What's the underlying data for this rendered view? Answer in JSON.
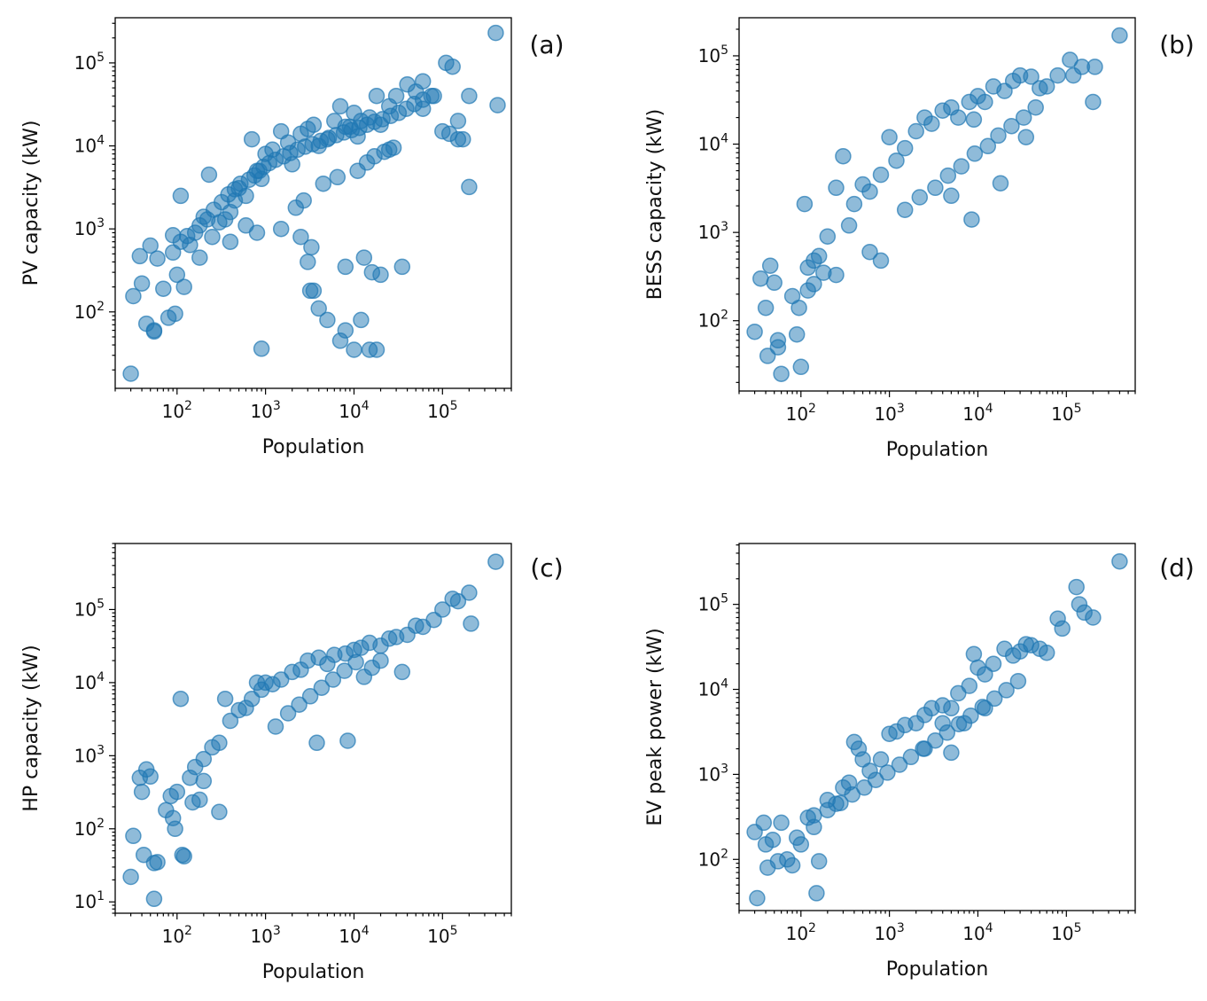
{
  "colors": {
    "point": "#1f77b4",
    "axis": "#000000",
    "background": "#ffffff"
  },
  "chart_data": [
    {
      "type": "scatter",
      "panel_label": "(a)",
      "xlabel": "Population",
      "ylabel": "PV capacity (kW)",
      "xscale": "log",
      "yscale": "log",
      "xlim": [
        20,
        600000
      ],
      "ylim": [
        12,
        350000
      ],
      "xticks": [
        {
          "v": 100,
          "label": "10^2"
        },
        {
          "v": 1000,
          "label": "10^3"
        },
        {
          "v": 10000,
          "label": "10^4"
        },
        {
          "v": 100000,
          "label": "10^5"
        }
      ],
      "yticks": [
        {
          "v": 100,
          "label": "10^2"
        },
        {
          "v": 1000,
          "label": "10^3"
        },
        {
          "v": 10000,
          "label": "10^4"
        },
        {
          "v": 100000,
          "label": "10^5"
        }
      ],
      "legend": "none",
      "grid": false,
      "x": [
        30,
        32,
        38,
        40,
        45,
        50,
        55,
        55,
        60,
        70,
        80,
        90,
        95,
        100,
        110,
        120,
        140,
        160,
        180,
        200,
        230,
        250,
        300,
        350,
        400,
        450,
        500,
        600,
        700,
        800,
        900,
        1000,
        1200,
        1500,
        1800,
        2000,
        2500,
        3000,
        3500,
        4000,
        5000,
        6000,
        7000,
        8000,
        10000,
        12000,
        15000,
        18000,
        20000,
        25000,
        30000,
        40000,
        50000,
        60000,
        80000,
        110000,
        130000,
        150000,
        200000,
        400000,
        420000,
        200000,
        150000,
        100000,
        3500,
        3200,
        4000,
        5000,
        7000,
        8000,
        10000,
        12000,
        15000,
        18000,
        900,
        3000,
        3300,
        1500,
        2500,
        8000,
        13000,
        16000,
        20000,
        35000,
        170000,
        120000,
        60000,
        25000,
        9000,
        11000,
        400,
        600,
        800,
        2200,
        2700,
        4500,
        6500,
        11000,
        14000,
        17000,
        22000,
        28000,
        90,
        110,
        130,
        180,
        220,
        260,
        320,
        380,
        450,
        520,
        650,
        750,
        850,
        950,
        1100,
        1300,
        1600,
        1900,
        2300,
        2800,
        3400,
        4200,
        5200,
        6300,
        7700,
        9400,
        11500,
        14000,
        17000,
        21000,
        26000,
        32000,
        39000,
        48000,
        60000,
        75000
      ],
      "y": [
        18,
        155,
        470,
        220,
        72,
        630,
        60,
        58,
        440,
        190,
        85,
        840,
        95,
        280,
        2500,
        200,
        640,
        900,
        450,
        1400,
        4500,
        800,
        1200,
        1300,
        1600,
        2200,
        3100,
        2500,
        12000,
        5000,
        4000,
        8000,
        9000,
        15000,
        11000,
        6000,
        14000,
        16000,
        18000,
        10000,
        12000,
        20000,
        30000,
        17000,
        25000,
        20000,
        22000,
        40000,
        18000,
        30000,
        40000,
        55000,
        45000,
        60000,
        40000,
        100000,
        90000,
        20000,
        40000,
        230000,
        31000,
        3200,
        12000,
        15000,
        180,
        180,
        110,
        80,
        45,
        60,
        35,
        80,
        35,
        35,
        36,
        400,
        600,
        1000,
        800,
        350,
        450,
        300,
        280,
        350,
        12000,
        14000,
        28000,
        9000,
        17000,
        13000,
        700,
        1100,
        900,
        1800,
        2200,
        3500,
        4200,
        5000,
        6300,
        7500,
        8500,
        9500,
        520,
        700,
        820,
        1100,
        1300,
        1700,
        2100,
        2600,
        3000,
        3500,
        3900,
        4400,
        5000,
        5600,
        6200,
        6800,
        7500,
        8200,
        9000,
        9800,
        10500,
        11500,
        12500,
        13500,
        14500,
        15500,
        16500,
        18000,
        19500,
        21000,
        23000,
        25000,
        28000,
        32000,
        36000,
        40000
      ]
    },
    {
      "type": "scatter",
      "panel_label": "(b)",
      "xlabel": "Population",
      "ylabel": "BESS capacity (kW)",
      "xscale": "log",
      "yscale": "log",
      "xlim": [
        20,
        600000
      ],
      "ylim": [
        16,
        270000
      ],
      "xticks": [
        {
          "v": 100,
          "label": "10^2"
        },
        {
          "v": 1000,
          "label": "10^3"
        },
        {
          "v": 10000,
          "label": "10^4"
        },
        {
          "v": 100000,
          "label": "10^5"
        }
      ],
      "yticks": [
        {
          "v": 100,
          "label": "10^2"
        },
        {
          "v": 1000,
          "label": "10^3"
        },
        {
          "v": 10000,
          "label": "10^4"
        },
        {
          "v": 100000,
          "label": "10^5"
        }
      ],
      "legend": "none",
      "grid": false,
      "x": [
        30,
        35,
        40,
        42,
        45,
        50,
        55,
        55,
        60,
        80,
        90,
        95,
        100,
        110,
        120,
        140,
        160,
        200,
        250,
        300,
        350,
        400,
        500,
        600,
        800,
        1000,
        1200,
        1500,
        2000,
        2500,
        3000,
        4000,
        5000,
        6000,
        8000,
        9000,
        10000,
        12000,
        15000,
        20000,
        25000,
        30000,
        40000,
        50000,
        60000,
        80000,
        110000,
        120000,
        150000,
        200000,
        210000,
        400000,
        18000,
        5000,
        800,
        600,
        8500,
        35000,
        250,
        180,
        140,
        120,
        1500,
        2200,
        3300,
        4600,
        6500,
        9200,
        13000,
        17000,
        24000,
        33000,
        45000
      ],
      "y": [
        75,
        300,
        140,
        40,
        420,
        270,
        60,
        50,
        25,
        190,
        70,
        140,
        30,
        2100,
        400,
        480,
        540,
        900,
        3200,
        7300,
        1200,
        2100,
        3500,
        2900,
        4500,
        12000,
        6500,
        9000,
        14000,
        20000,
        17000,
        24000,
        26000,
        20000,
        30000,
        19000,
        35000,
        30000,
        45000,
        40000,
        52000,
        60000,
        58000,
        43000,
        45000,
        60000,
        90000,
        60000,
        75000,
        30000,
        75000,
        170000,
        3600,
        2600,
        480,
        600,
        1400,
        12000,
        330,
        350,
        260,
        220,
        1800,
        2500,
        3200,
        4400,
        5600,
        7800,
        9500,
        12500,
        16000,
        20000,
        26000
      ]
    },
    {
      "type": "scatter",
      "panel_label": "(c)",
      "xlabel": "Population",
      "ylabel": "HP capacity (kW)",
      "xscale": "log",
      "yscale": "log",
      "xlim": [
        20,
        600000
      ],
      "ylim": [
        7,
        800000
      ],
      "xticks": [
        {
          "v": 100,
          "label": "10^2"
        },
        {
          "v": 1000,
          "label": "10^3"
        },
        {
          "v": 10000,
          "label": "10^4"
        },
        {
          "v": 100000,
          "label": "10^5"
        }
      ],
      "yticks": [
        {
          "v": 10,
          "label": "10^1"
        },
        {
          "v": 100,
          "label": "10^2"
        },
        {
          "v": 1000,
          "label": "10^3"
        },
        {
          "v": 10000,
          "label": "10^4"
        },
        {
          "v": 100000,
          "label": "10^5"
        }
      ],
      "legend": "none",
      "grid": false,
      "x": [
        30,
        32,
        38,
        40,
        42,
        45,
        50,
        55,
        55,
        60,
        75,
        85,
        90,
        95,
        100,
        110,
        115,
        120,
        140,
        160,
        200,
        250,
        300,
        350,
        400,
        500,
        600,
        700,
        800,
        900,
        1000,
        1200,
        1500,
        2000,
        2500,
        3000,
        4000,
        5000,
        6000,
        8000,
        10000,
        12000,
        15000,
        20000,
        25000,
        30000,
        40000,
        50000,
        60000,
        80000,
        100000,
        130000,
        150000,
        200000,
        210000,
        400000,
        8500,
        3800,
        200,
        300,
        150,
        180,
        13000,
        16000,
        20000,
        35000,
        1300,
        1800,
        2400,
        3200,
        4300,
        5800,
        7800,
        10500
      ],
      "y": [
        22,
        80,
        500,
        320,
        44,
        650,
        520,
        34,
        11,
        35,
        180,
        280,
        140,
        100,
        320,
        6000,
        44,
        42,
        500,
        700,
        900,
        1300,
        1500,
        6000,
        3000,
        4200,
        4500,
        6000,
        10000,
        8000,
        10000,
        9500,
        11000,
        14000,
        15000,
        20000,
        22000,
        18000,
        24000,
        25000,
        28000,
        30000,
        35000,
        32000,
        40000,
        42000,
        45000,
        60000,
        58000,
        72000,
        100000,
        140000,
        130000,
        170000,
        64000,
        450000,
        1600,
        1500,
        450,
        170,
        230,
        250,
        12000,
        16000,
        20000,
        14000,
        2500,
        3800,
        5000,
        6500,
        8500,
        11000,
        14500,
        19000
      ]
    },
    {
      "type": "scatter",
      "panel_label": "(d)",
      "xlabel": "Population",
      "ylabel": "EV peak power (kW)",
      "xscale": "log",
      "yscale": "log",
      "xlim": [
        20,
        600000
      ],
      "ylim": [
        25,
        520000
      ],
      "xticks": [
        {
          "v": 100,
          "label": "10^2"
        },
        {
          "v": 1000,
          "label": "10^3"
        },
        {
          "v": 10000,
          "label": "10^4"
        },
        {
          "v": 100000,
          "label": "10^5"
        }
      ],
      "yticks": [
        {
          "v": 100,
          "label": "10^2"
        },
        {
          "v": 1000,
          "label": "10^3"
        },
        {
          "v": 10000,
          "label": "10^4"
        },
        {
          "v": 100000,
          "label": "10^5"
        }
      ],
      "legend": "none",
      "grid": false,
      "x": [
        30,
        32,
        38,
        40,
        42,
        48,
        55,
        60,
        70,
        80,
        90,
        100,
        120,
        140,
        150,
        160,
        200,
        250,
        300,
        350,
        400,
        450,
        500,
        600,
        800,
        1000,
        1200,
        1500,
        2000,
        2500,
        3000,
        4000,
        5000,
        6000,
        8000,
        9000,
        10000,
        12000,
        15000,
        20000,
        25000,
        30000,
        35000,
        40000,
        50000,
        60000,
        80000,
        90000,
        130000,
        140000,
        160000,
        200000,
        400000,
        140,
        2500,
        4000,
        5000,
        12000,
        7000,
        200,
        280,
        380,
        520,
        700,
        950,
        1300,
        1750,
        2400,
        3300,
        4500,
        6100,
        8300,
        11300,
        15400,
        21000,
        28500
      ],
      "y": [
        210,
        35,
        270,
        150,
        80,
        170,
        95,
        270,
        100,
        85,
        180,
        150,
        310,
        240,
        40,
        95,
        500,
        450,
        700,
        800,
        2400,
        2000,
        1500,
        1100,
        1500,
        3000,
        3200,
        3800,
        4000,
        5000,
        6000,
        6500,
        6000,
        9000,
        11000,
        26000,
        18000,
        15000,
        20000,
        30000,
        25000,
        28000,
        34000,
        33000,
        30000,
        27000,
        68000,
        52000,
        160000,
        100000,
        80000,
        70000,
        320000,
        330,
        2000,
        4000,
        1800,
        6000,
        4000,
        380,
        460,
        580,
        700,
        860,
        1050,
        1300,
        1600,
        2000,
        2500,
        3100,
        3900,
        4900,
        6200,
        7800,
        9800,
        12500
      ]
    }
  ]
}
